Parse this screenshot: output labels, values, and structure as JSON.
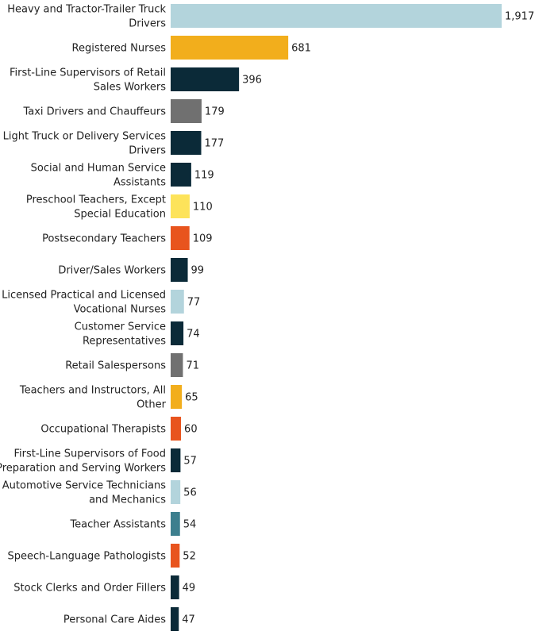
{
  "chart_data": {
    "type": "bar",
    "orientation": "horizontal",
    "title": "",
    "xlabel": "",
    "ylabel": "",
    "grid": false,
    "legend": "none",
    "xlim": [
      0,
      1917
    ],
    "categories": [
      "Heavy and Tractor-Trailer Truck Drivers",
      "Registered Nurses",
      "First-Line Supervisors of Retail Sales Workers",
      "Taxi Drivers and Chauffeurs",
      "Light Truck or Delivery Services Drivers",
      "Social and Human Service Assistants",
      "Preschool Teachers, Except Special Education",
      "Postsecondary Teachers",
      "Driver/Sales Workers",
      "Licensed Practical and Licensed Vocational Nurses",
      "Customer Service Representatives",
      "Retail Salespersons",
      "Teachers and Instructors, All Other",
      "Occupational Therapists",
      "First-Line Supervisors of Food Preparation and Serving Workers",
      "Automotive Service Technicians and Mechanics",
      "Teacher Assistants",
      "Speech-Language Pathologists",
      "Stock Clerks and Order Fillers",
      "Personal Care Aides"
    ],
    "label_lines": [
      [
        "Heavy and Tractor-Trailer Truck",
        "Drivers"
      ],
      [
        "Registered Nurses"
      ],
      [
        "First-Line Supervisors of Retail",
        "Sales Workers"
      ],
      [
        "Taxi Drivers and Chauffeurs"
      ],
      [
        "Light Truck or Delivery Services",
        "Drivers"
      ],
      [
        "Social and Human Service",
        "Assistants"
      ],
      [
        "Preschool Teachers, Except",
        "Special Education"
      ],
      [
        "Postsecondary Teachers"
      ],
      [
        "Driver/Sales Workers"
      ],
      [
        "Licensed Practical and Licensed",
        "Vocational Nurses"
      ],
      [
        "Customer Service",
        "Representatives"
      ],
      [
        "Retail Salespersons"
      ],
      [
        "Teachers and Instructors, All",
        "Other"
      ],
      [
        "Occupational Therapists"
      ],
      [
        "First-Line Supervisors of Food",
        "Preparation and Serving Workers"
      ],
      [
        "Automotive Service Technicians",
        "and Mechanics"
      ],
      [
        "Teacher Assistants"
      ],
      [
        "Speech-Language Pathologists"
      ],
      [
        "Stock Clerks and Order Fillers"
      ],
      [
        "Personal Care Aides"
      ]
    ],
    "values": [
      1917,
      681,
      396,
      179,
      177,
      119,
      110,
      109,
      99,
      77,
      74,
      71,
      65,
      60,
      57,
      56,
      54,
      52,
      49,
      47
    ],
    "value_labels": [
      "1,917",
      "681",
      "396",
      "179",
      "177",
      "119",
      "110",
      "109",
      "99",
      "77",
      "74",
      "71",
      "65",
      "60",
      "57",
      "56",
      "54",
      "52",
      "49",
      "47"
    ],
    "colors": [
      "#b3d4dc",
      "#f2ae1c",
      "#0b2a38",
      "#707070",
      "#0b2a38",
      "#0b2a38",
      "#fde35a",
      "#e8541e",
      "#0b2a38",
      "#b3d4dc",
      "#0b2a38",
      "#707070",
      "#f2ae1c",
      "#e8541e",
      "#0b2a38",
      "#b3d4dc",
      "#3d7f8e",
      "#e8541e",
      "#0b2a38",
      "#0b2a38"
    ]
  }
}
